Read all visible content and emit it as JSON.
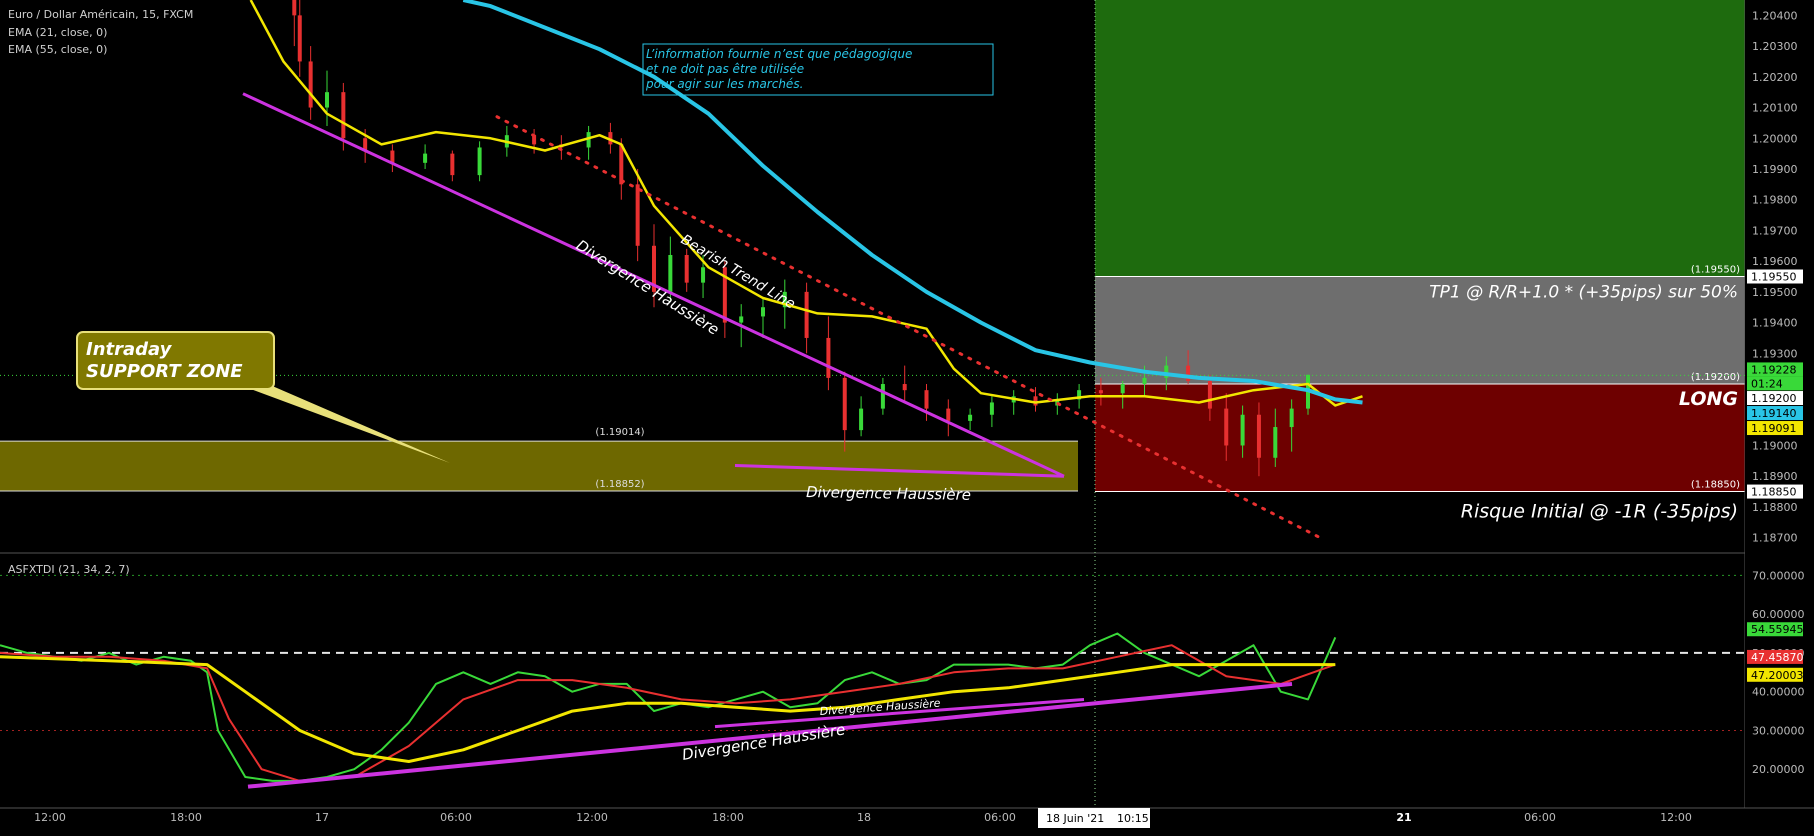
{
  "legend": {
    "symbol_line": "Euro / Dollar Américain, 15, FXCM",
    "ema21_line": "EMA (21, close, 0)",
    "ema55_line": "EMA (55, close, 0)",
    "indicator_line": "ASFXTDI (21, 34, 2, 7)"
  },
  "disclaimer": [
    "L’information fournie n’est que pédagogique",
    "et ne doit pas être utilisée",
    "pour agir sur les marchés."
  ],
  "callout": {
    "line1": "Intraday",
    "line2": "SUPPORT ZONE"
  },
  "annotations": {
    "bearish_trend_line": "Bearish Trend Line",
    "divergence_price_upper": "Divergence Haussière",
    "divergence_price_lower": "Divergence Haussière",
    "divergence_ind_upper": "Divergence Haussière",
    "divergence_ind_lower": "Divergence Haussière",
    "zone_top_label": "(1.19014)",
    "zone_bottom_label": "(1.18852)",
    "tp_price_label": "(1.19550)",
    "entry_price_label": "(1.19200)",
    "stop_price_label": "(1.18850)"
  },
  "position": {
    "tp_text": "TP1 @ R/R+1.0 * (+35pips) sur 50%",
    "long_text": "LONG",
    "risk_text": "Risque Initial @ -1R (-35pips)",
    "colors": {
      "target": "#1e6b0e",
      "tp_band": "#6e6e6e",
      "stop": "#6e0000"
    }
  },
  "price_axis": {
    "ticks": [
      "1.20400",
      "1.20300",
      "1.20200",
      "1.20100",
      "1.20000",
      "1.19900",
      "1.19800",
      "1.19700",
      "1.19600",
      "1.19500",
      "1.19400",
      "1.19300",
      "1.19200",
      "1.19100",
      "1.19000",
      "1.18900",
      "1.18800",
      "1.18700"
    ],
    "badges": [
      {
        "value": "1.19550",
        "bg": "#ffffff",
        "fg": "#000000"
      },
      {
        "value": "1.19228",
        "bg": "#39d939",
        "fg": "#000000"
      },
      {
        "value": "01:24",
        "bg": "#39d939",
        "fg": "#000000"
      },
      {
        "value": "1.19200",
        "bg": "#ffffff",
        "fg": "#000000"
      },
      {
        "value": "1.19140",
        "bg": "#29c5e6",
        "fg": "#000000"
      },
      {
        "value": "1.19091",
        "bg": "#f2e600",
        "fg": "#000000"
      },
      {
        "value": "1.18850",
        "bg": "#ffffff",
        "fg": "#000000"
      }
    ]
  },
  "indicator_axis": {
    "ticks": [
      "70.00000",
      "60.00000",
      "50.00000",
      "40.00000",
      "30.00000",
      "20.00000"
    ],
    "badges": [
      {
        "value": "54.55945",
        "bg": "#39d939",
        "fg": "#000000"
      },
      {
        "value": "47.45870",
        "bg": "#e83030",
        "fg": "#ffffff"
      },
      {
        "value": "47.20003",
        "bg": "#f2e600",
        "fg": "#000000"
      }
    ]
  },
  "time_axis": {
    "ticks": [
      "12:00",
      "18:00",
      "17",
      "06:00",
      "12:00",
      "18:00",
      "18",
      "06:00",
      "21",
      "06:00",
      "12:00"
    ],
    "current": "18 Juin '21",
    "current_time": "10:15"
  },
  "chart_data": [
    {
      "type": "candlestick",
      "title": "Euro / Dollar Américain, 15, FXCM",
      "ylim": [
        1.1865,
        1.2045
      ],
      "series": [
        {
          "name": "EMA (21, close, 0)",
          "color": "#f2e600",
          "x": [
            0.46,
            0.52,
            0.6,
            0.7,
            0.8,
            0.9,
            1.0,
            1.1,
            1.14,
            1.2,
            1.3,
            1.4,
            1.5,
            1.6,
            1.7,
            1.75,
            1.8,
            1.9,
            2.0,
            2.1,
            2.2,
            2.3,
            2.4,
            2.45,
            2.5
          ],
          "values": [
            1.2045,
            1.2025,
            1.2008,
            1.1998,
            1.2002,
            1.2,
            1.1996,
            1.2001,
            1.1998,
            1.1978,
            1.1958,
            1.1948,
            1.1943,
            1.1942,
            1.1938,
            1.1925,
            1.1917,
            1.1914,
            1.1916,
            1.1916,
            1.1914,
            1.1918,
            1.192,
            1.1913,
            1.1916
          ]
        },
        {
          "name": "EMA (55, close, 0)",
          "color": "#29c5e6",
          "x": [
            0.85,
            0.9,
            1.0,
            1.1,
            1.2,
            1.3,
            1.4,
            1.5,
            1.6,
            1.7,
            1.8,
            1.9,
            2.0,
            2.1,
            2.2,
            2.3,
            2.4,
            2.45,
            2.5
          ],
          "values": [
            1.2045,
            1.2043,
            1.2036,
            1.2029,
            1.202,
            1.2008,
            1.1991,
            1.1976,
            1.1962,
            1.195,
            1.194,
            1.1931,
            1.1927,
            1.1924,
            1.1922,
            1.1921,
            1.1918,
            1.1915,
            1.1914
          ]
        }
      ],
      "candles": [
        [
          0.54,
          1.2045,
          1.2049,
          1.203,
          1.204
        ],
        [
          0.55,
          1.204,
          1.2048,
          1.202,
          1.2025
        ],
        [
          0.57,
          1.2025,
          1.203,
          1.2006,
          1.201
        ],
        [
          0.6,
          1.201,
          1.2022,
          1.2004,
          1.2015
        ],
        [
          0.63,
          1.2015,
          1.2018,
          1.1996,
          1.2
        ],
        [
          0.67,
          1.2,
          1.2003,
          1.1992,
          1.1996
        ],
        [
          0.72,
          1.1996,
          1.1998,
          1.1989,
          1.1992
        ],
        [
          0.78,
          1.1992,
          1.1998,
          1.199,
          1.1995
        ],
        [
          0.83,
          1.1995,
          1.1996,
          1.1986,
          1.1988
        ],
        [
          0.88,
          1.1988,
          1.1999,
          1.1986,
          1.1997
        ],
        [
          0.93,
          1.1997,
          1.2004,
          1.1994,
          1.2001
        ],
        [
          0.98,
          1.2001,
          1.2003,
          1.1995,
          1.1998
        ],
        [
          1.03,
          1.1998,
          1.2001,
          1.1993,
          1.1997
        ],
        [
          1.08,
          1.1997,
          1.2004,
          1.1993,
          1.2002
        ],
        [
          1.12,
          1.2002,
          1.2005,
          1.1995,
          1.1998
        ],
        [
          1.14,
          1.1998,
          1.2,
          1.198,
          1.1985
        ],
        [
          1.17,
          1.1985,
          1.199,
          1.196,
          1.1965
        ],
        [
          1.2,
          1.1965,
          1.1972,
          1.1945,
          1.195
        ],
        [
          1.23,
          1.195,
          1.1968,
          1.1947,
          1.1962
        ],
        [
          1.26,
          1.1962,
          1.1964,
          1.195,
          1.1953
        ],
        [
          1.29,
          1.1953,
          1.1962,
          1.1948,
          1.1958
        ],
        [
          1.33,
          1.1958,
          1.196,
          1.1935,
          1.194
        ],
        [
          1.36,
          1.194,
          1.1946,
          1.1932,
          1.1942
        ],
        [
          1.4,
          1.1942,
          1.1948,
          1.1935,
          1.1945
        ],
        [
          1.44,
          1.1945,
          1.1954,
          1.1938,
          1.195
        ],
        [
          1.48,
          1.195,
          1.1953,
          1.193,
          1.1935
        ],
        [
          1.52,
          1.1935,
          1.1942,
          1.1918,
          1.1922
        ],
        [
          1.55,
          1.1922,
          1.1924,
          1.1898,
          1.1905
        ],
        [
          1.58,
          1.1905,
          1.1916,
          1.1903,
          1.1912
        ],
        [
          1.62,
          1.1912,
          1.1922,
          1.191,
          1.192
        ],
        [
          1.66,
          1.192,
          1.1926,
          1.1914,
          1.1918
        ],
        [
          1.7,
          1.1918,
          1.192,
          1.1908,
          1.1912
        ],
        [
          1.74,
          1.1912,
          1.1915,
          1.1903,
          1.1908
        ],
        [
          1.78,
          1.1908,
          1.1912,
          1.1905,
          1.191
        ],
        [
          1.82,
          1.191,
          1.1916,
          1.1906,
          1.1914
        ],
        [
          1.86,
          1.1914,
          1.1918,
          1.191,
          1.1916
        ],
        [
          1.9,
          1.1916,
          1.1919,
          1.1911,
          1.1913
        ],
        [
          1.94,
          1.1913,
          1.1917,
          1.191,
          1.1915
        ],
        [
          1.98,
          1.1915,
          1.192,
          1.1912,
          1.1918
        ],
        [
          2.02,
          1.1918,
          1.1922,
          1.1913,
          1.1917
        ],
        [
          2.06,
          1.1917,
          1.1921,
          1.1912,
          1.192
        ],
        [
          2.1,
          1.192,
          1.1926,
          1.1916,
          1.1922
        ],
        [
          2.14,
          1.1922,
          1.1929,
          1.1918,
          1.1926
        ],
        [
          2.18,
          1.1926,
          1.1931,
          1.192,
          1.1921
        ],
        [
          2.22,
          1.1921,
          1.1923,
          1.1908,
          1.1912
        ],
        [
          2.25,
          1.1912,
          1.1917,
          1.1895,
          1.19
        ],
        [
          2.28,
          1.19,
          1.1913,
          1.1896,
          1.191
        ],
        [
          2.31,
          1.191,
          1.1914,
          1.189,
          1.1896
        ],
        [
          2.34,
          1.1896,
          1.1912,
          1.1893,
          1.1906
        ],
        [
          2.37,
          1.1906,
          1.1915,
          1.1898,
          1.1912
        ],
        [
          2.4,
          1.1912,
          1.1923,
          1.191,
          1.1923
        ]
      ]
    },
    {
      "type": "line",
      "title": "ASFXTDI (21, 34, 2, 7)",
      "ylim": [
        10,
        75
      ],
      "levels": [
        70,
        50,
        30
      ],
      "series": [
        {
          "color": "#39d939",
          "x": [
            0.0,
            0.05,
            0.1,
            0.15,
            0.2,
            0.25,
            0.3,
            0.35,
            0.38,
            0.4,
            0.45,
            0.5,
            0.55,
            0.6,
            0.65,
            0.7,
            0.75,
            0.8,
            0.85,
            0.9,
            0.95,
            1.0,
            1.05,
            1.1,
            1.15,
            1.2,
            1.25,
            1.3,
            1.35,
            1.4,
            1.45,
            1.5,
            1.55,
            1.6,
            1.65,
            1.7,
            1.75,
            1.8,
            1.85,
            1.9,
            1.95,
            2.0,
            2.05,
            2.1,
            2.15,
            2.2,
            2.25,
            2.3,
            2.35,
            2.4,
            2.45
          ],
          "values": [
            52,
            50,
            49,
            48,
            50,
            47,
            49,
            48,
            45,
            30,
            18,
            17,
            17,
            18,
            20,
            25,
            32,
            42,
            45,
            42,
            45,
            44,
            40,
            42,
            42,
            35,
            37,
            36,
            38,
            40,
            36,
            37,
            43,
            45,
            42,
            43,
            47,
            47,
            47,
            46,
            47,
            52,
            55,
            50,
            47,
            44,
            48,
            52,
            40,
            38,
            54
          ]
        },
        {
          "color": "#e83030",
          "x": [
            0.0,
            0.1,
            0.2,
            0.3,
            0.38,
            0.42,
            0.48,
            0.55,
            0.65,
            0.75,
            0.85,
            0.95,
            1.05,
            1.15,
            1.25,
            1.35,
            1.45,
            1.55,
            1.65,
            1.75,
            1.85,
            1.95,
            2.05,
            2.15,
            2.25,
            2.35,
            2.45
          ],
          "values": [
            50,
            49,
            49,
            48,
            46,
            33,
            20,
            17,
            18,
            26,
            38,
            43,
            43,
            41,
            38,
            37,
            38,
            40,
            42,
            45,
            46,
            46,
            49,
            52,
            44,
            42,
            47
          ]
        },
        {
          "color": "#f2e600",
          "x": [
            0.0,
            0.2,
            0.38,
            0.45,
            0.55,
            0.65,
            0.75,
            0.85,
            0.95,
            1.05,
            1.15,
            1.25,
            1.35,
            1.45,
            1.55,
            1.65,
            1.75,
            1.85,
            1.95,
            2.05,
            2.15,
            2.25,
            2.35,
            2.45
          ],
          "values": [
            49,
            48,
            47,
            40,
            30,
            24,
            22,
            25,
            30,
            35,
            37,
            37,
            36,
            35,
            36,
            38,
            40,
            41,
            43,
            45,
            47,
            47,
            47,
            47
          ]
        }
      ]
    }
  ]
}
